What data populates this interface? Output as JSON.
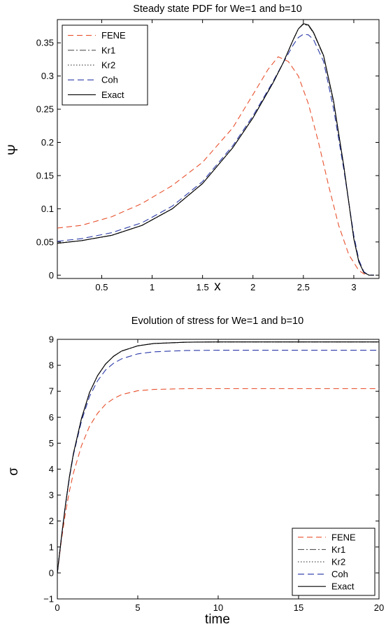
{
  "chart_data": [
    {
      "type": "line",
      "title": "Steady state PDF for We=1 and b=10",
      "xlabel": "x",
      "ylabel": "Ψ",
      "xlim": [
        0.06,
        3.25
      ],
      "ylim": [
        -0.005,
        0.385
      ],
      "xticks": [
        0.5,
        1,
        1.5,
        2,
        2.5,
        3
      ],
      "xtick_labels": [
        "0.5",
        "1",
        "1.5",
        "2",
        "2.5",
        "3"
      ],
      "yticks": [
        0,
        0.05,
        0.1,
        0.15,
        0.2,
        0.25,
        0.3,
        0.35
      ],
      "ytick_labels": [
        "0",
        "0.05",
        "0.1",
        "0.15",
        "0.2",
        "0.25",
        "0.3",
        "0.35"
      ],
      "legend_position": "top-left",
      "grid": false,
      "series": [
        {
          "name": "FENE",
          "color": "#e8502d",
          "dash": "8,5",
          "x": [
            0.06,
            0.3,
            0.6,
            0.9,
            1.2,
            1.5,
            1.8,
            2.0,
            2.15,
            2.25,
            2.35,
            2.45,
            2.55,
            2.65,
            2.75,
            2.85,
            2.95,
            3.05,
            3.1,
            3.14
          ],
          "y": [
            0.071,
            0.075,
            0.088,
            0.108,
            0.135,
            0.17,
            0.222,
            0.272,
            0.31,
            0.329,
            0.322,
            0.3,
            0.258,
            0.2,
            0.135,
            0.075,
            0.031,
            0.007,
            0.002,
            0.0
          ]
        },
        {
          "name": "Kr1",
          "color": "#555555",
          "dash": "9,3,2,3",
          "x": [
            0.06,
            0.3,
            0.6,
            0.9,
            1.2,
            1.5,
            1.8,
            2.0,
            2.2,
            2.3,
            2.4,
            2.45,
            2.5,
            2.55,
            2.6,
            2.7,
            2.8,
            2.9,
            3.0,
            3.05,
            3.1,
            3.15,
            3.2
          ],
          "y": [
            0.048,
            0.052,
            0.06,
            0.075,
            0.1,
            0.138,
            0.192,
            0.237,
            0.29,
            0.32,
            0.355,
            0.371,
            0.378,
            0.376,
            0.365,
            0.33,
            0.26,
            0.165,
            0.055,
            0.02,
            0.004,
            0.0,
            0.0
          ]
        },
        {
          "name": "Kr2",
          "color": "#222222",
          "dash": "1.5,2.5",
          "x": [
            0.06,
            0.3,
            0.6,
            0.9,
            1.2,
            1.5,
            1.8,
            2.0,
            2.2,
            2.3,
            2.4,
            2.45,
            2.5,
            2.55,
            2.6,
            2.7,
            2.8,
            2.9,
            3.0,
            3.05,
            3.1,
            3.15,
            3.2
          ],
          "y": [
            0.048,
            0.052,
            0.06,
            0.075,
            0.1,
            0.138,
            0.192,
            0.237,
            0.29,
            0.32,
            0.355,
            0.371,
            0.378,
            0.376,
            0.365,
            0.33,
            0.26,
            0.165,
            0.055,
            0.02,
            0.004,
            0.0,
            0.0
          ]
        },
        {
          "name": "Coh",
          "color": "#2b3aa8",
          "dash": "9,5",
          "x": [
            0.06,
            0.3,
            0.6,
            0.9,
            1.2,
            1.5,
            1.8,
            2.0,
            2.2,
            2.3,
            2.4,
            2.45,
            2.5,
            2.55,
            2.6,
            2.7,
            2.8,
            2.9,
            3.0,
            3.05,
            3.1,
            3.15,
            3.2
          ],
          "y": [
            0.051,
            0.055,
            0.064,
            0.079,
            0.104,
            0.141,
            0.195,
            0.24,
            0.292,
            0.32,
            0.347,
            0.358,
            0.363,
            0.362,
            0.355,
            0.322,
            0.25,
            0.16,
            0.06,
            0.023,
            0.005,
            0.0,
            0.0
          ]
        },
        {
          "name": "Exact",
          "color": "#000000",
          "dash": "",
          "x": [
            0.06,
            0.3,
            0.6,
            0.9,
            1.2,
            1.5,
            1.8,
            2.0,
            2.2,
            2.3,
            2.4,
            2.45,
            2.5,
            2.55,
            2.6,
            2.7,
            2.8,
            2.9,
            3.0,
            3.05,
            3.1,
            3.15,
            3.2
          ],
          "y": [
            0.048,
            0.052,
            0.06,
            0.075,
            0.1,
            0.138,
            0.192,
            0.237,
            0.29,
            0.32,
            0.355,
            0.371,
            0.379,
            0.377,
            0.366,
            0.331,
            0.262,
            0.165,
            0.055,
            0.02,
            0.004,
            0.0,
            0.0
          ]
        }
      ]
    },
    {
      "type": "line",
      "title": "Evolution of stress for We=1 and b=10",
      "xlabel": "time",
      "ylabel": "σ",
      "xlim": [
        0,
        20
      ],
      "ylim": [
        -1,
        9
      ],
      "xticks": [
        0,
        5,
        10,
        15,
        20
      ],
      "xtick_labels": [
        "0",
        "5",
        "10",
        "15",
        "20"
      ],
      "yticks": [
        -1,
        0,
        1,
        2,
        3,
        4,
        5,
        6,
        7,
        8,
        9
      ],
      "ytick_labels": [
        "−1",
        "0",
        "1",
        "2",
        "3",
        "4",
        "5",
        "6",
        "7",
        "8",
        "9"
      ],
      "legend_position": "bottom-right",
      "grid": false,
      "series": [
        {
          "name": "FENE",
          "color": "#e8502d",
          "dash": "8,5",
          "x": [
            0,
            0.25,
            0.5,
            0.75,
            1,
            1.5,
            2,
            2.5,
            3,
            3.5,
            4,
            5,
            6,
            8,
            10,
            15,
            20
          ],
          "y": [
            0,
            1.25,
            2.3,
            3.15,
            3.85,
            4.9,
            5.65,
            6.15,
            6.5,
            6.72,
            6.87,
            7.02,
            7.07,
            7.1,
            7.1,
            7.1,
            7.1
          ]
        },
        {
          "name": "Kr1",
          "color": "#555555",
          "dash": "9,3,2,3",
          "x": [
            0,
            0.25,
            0.5,
            0.75,
            1,
            1.5,
            2,
            2.5,
            3,
            3.5,
            4,
            5,
            6,
            8,
            10,
            15,
            20
          ],
          "y": [
            0,
            1.35,
            2.6,
            3.7,
            4.6,
            5.95,
            6.95,
            7.6,
            8.05,
            8.35,
            8.55,
            8.75,
            8.84,
            8.89,
            8.9,
            8.9,
            8.9
          ]
        },
        {
          "name": "Kr2",
          "color": "#222222",
          "dash": "1.5,2.5",
          "x": [
            0,
            0.25,
            0.5,
            0.75,
            1,
            1.5,
            2,
            2.5,
            3,
            3.5,
            4,
            5,
            6,
            8,
            10,
            15,
            20
          ],
          "y": [
            0,
            1.35,
            2.6,
            3.7,
            4.6,
            5.95,
            6.95,
            7.6,
            8.05,
            8.35,
            8.55,
            8.75,
            8.84,
            8.89,
            8.9,
            8.9,
            8.9
          ]
        },
        {
          "name": "Coh",
          "color": "#2b3aa8",
          "dash": "9,5",
          "x": [
            0,
            0.25,
            0.5,
            0.75,
            1,
            1.5,
            2,
            2.5,
            3,
            3.5,
            4,
            5,
            6,
            8,
            10,
            15,
            20
          ],
          "y": [
            0,
            1.35,
            2.6,
            3.65,
            4.55,
            5.85,
            6.8,
            7.4,
            7.82,
            8.08,
            8.25,
            8.44,
            8.52,
            8.57,
            8.58,
            8.58,
            8.58
          ]
        },
        {
          "name": "Exact",
          "color": "#000000",
          "dash": "",
          "x": [
            0,
            0.25,
            0.5,
            0.75,
            1,
            1.5,
            2,
            2.5,
            3,
            3.5,
            4,
            5,
            6,
            8,
            10,
            15,
            20
          ],
          "y": [
            0,
            1.35,
            2.6,
            3.7,
            4.6,
            5.95,
            6.95,
            7.6,
            8.05,
            8.35,
            8.55,
            8.75,
            8.84,
            8.89,
            8.9,
            8.9,
            8.9
          ]
        }
      ]
    }
  ]
}
